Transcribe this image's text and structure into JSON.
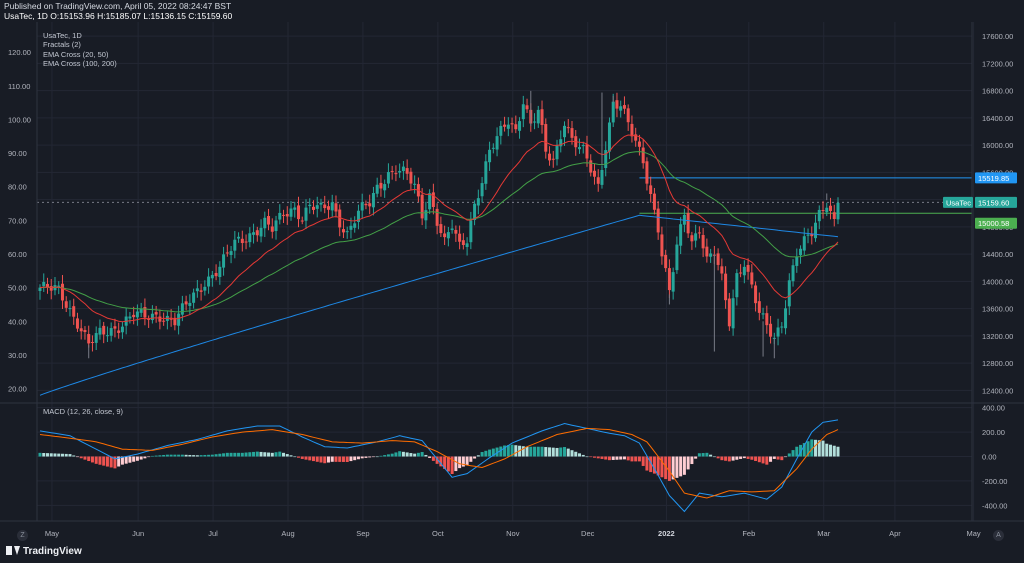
{
  "header": {
    "published": "Published on TradingView.com, April 05, 2022 08:24:47 BST",
    "ohlc": "UsaTec, 1D O:15153.96 H:15185.07 L:15136.15 C:15159.60"
  },
  "legend": {
    "symbol": "UsaTec, 1D",
    "indicators": [
      "Fractals (2)",
      "EMA Cross (20, 50)",
      "EMA Cross (100, 200)"
    ]
  },
  "macd_label": "MACD (12, 26, close, 9)",
  "footer": {
    "logo": "TradingView",
    "corner_left": "Z",
    "corner_right": "A"
  },
  "colors": {
    "background": "#181c25",
    "grid": "#232734",
    "up": "#26a69a",
    "down": "#ef5350",
    "ema_fast": "#e53935",
    "ema_slow": "#43a047",
    "ema_long": "#1e88e5",
    "macd_line": "#2196f3",
    "signal_line": "#ff6d00",
    "text": "#b2b5be"
  },
  "chart_data": {
    "type": "candlestick",
    "title": "UsaTec, 1D",
    "x_axis": {
      "tick_labels": [
        "May",
        "Jun",
        "Jul",
        "Aug",
        "Sep",
        "Oct",
        "Nov",
        "Dec",
        "2022",
        "Feb",
        "Mar",
        "Apr",
        "May"
      ]
    },
    "y_axis_left": {
      "tick_labels": [
        "20.00",
        "30.00",
        "40.00",
        "50.00",
        "60.00",
        "70.00",
        "80.00",
        "90.00",
        "100.00",
        "110.00",
        "120.00"
      ],
      "range": [
        16,
        126
      ]
    },
    "y_axis_right": {
      "tick_labels": [
        "12400.00",
        "12800.00",
        "13200.00",
        "13600.00",
        "14000.00",
        "14400.00",
        "14800.00",
        "15200.00",
        "15600.00",
        "16000.00",
        "16400.00",
        "16800.00",
        "17200.00",
        "17600.00"
      ],
      "range": [
        12230,
        17660
      ]
    },
    "price_labels": [
      {
        "text": "15519.85",
        "value": 15519.85,
        "color": "#2196f3"
      },
      {
        "text": "UsaTec",
        "value": 15159.6,
        "color": "#26a69a"
      },
      {
        "text": "15159.60",
        "value": 15159.6,
        "color": "#26a69a"
      },
      {
        "text": "15000.58",
        "value": 15000.58,
        "color": "#4caf50"
      }
    ],
    "horizontal_levels": [
      {
        "value": 15519.85,
        "color": "#2196f3",
        "style": "solid"
      },
      {
        "value": 15000.58,
        "color": "#4caf50",
        "style": "solid"
      },
      {
        "value": 15159.6,
        "color": "#787b86",
        "style": "dashed"
      }
    ],
    "close_path": [
      [
        0,
        50
      ],
      [
        5,
        49
      ],
      [
        10,
        40
      ],
      [
        13,
        33
      ],
      [
        16,
        36
      ],
      [
        20,
        38
      ],
      [
        25,
        42
      ],
      [
        28,
        41
      ],
      [
        32,
        42
      ],
      [
        36,
        40
      ],
      [
        40,
        46
      ],
      [
        44,
        52
      ],
      [
        48,
        56
      ],
      [
        52,
        63
      ],
      [
        56,
        66
      ],
      [
        60,
        69
      ],
      [
        62,
        67
      ],
      [
        65,
        72
      ],
      [
        68,
        74
      ],
      [
        70,
        71
      ],
      [
        72,
        74
      ],
      [
        75,
        73
      ],
      [
        78,
        75
      ],
      [
        80,
        70
      ],
      [
        82,
        66
      ],
      [
        85,
        72
      ],
      [
        88,
        75
      ],
      [
        90,
        80
      ],
      [
        93,
        84
      ],
      [
        95,
        85
      ],
      [
        98,
        83
      ],
      [
        100,
        80
      ],
      [
        102,
        72
      ],
      [
        104,
        78
      ],
      [
        106,
        70
      ],
      [
        108,
        63
      ],
      [
        110,
        68
      ],
      [
        112,
        62
      ],
      [
        114,
        65
      ],
      [
        116,
        75
      ],
      [
        118,
        82
      ],
      [
        120,
        90
      ],
      [
        123,
        96
      ],
      [
        125,
        100
      ],
      [
        127,
        97
      ],
      [
        129,
        106
      ],
      [
        131,
        98
      ],
      [
        133,
        102
      ],
      [
        135,
        90
      ],
      [
        137,
        88
      ],
      [
        140,
        100
      ],
      [
        142,
        94
      ],
      [
        145,
        90
      ],
      [
        147,
        85
      ],
      [
        149,
        80
      ],
      [
        151,
        93
      ],
      [
        153,
        105
      ],
      [
        155,
        104
      ],
      [
        157,
        98
      ],
      [
        159,
        93
      ],
      [
        161,
        88
      ],
      [
        163,
        78
      ],
      [
        165,
        68
      ],
      [
        166,
        60
      ],
      [
        168,
        48
      ],
      [
        170,
        62
      ],
      [
        172,
        72
      ],
      [
        174,
        64
      ],
      [
        176,
        68
      ],
      [
        178,
        58
      ],
      [
        180,
        60
      ],
      [
        182,
        52
      ],
      [
        184,
        40
      ],
      [
        186,
        54
      ],
      [
        188,
        58
      ],
      [
        190,
        50
      ],
      [
        192,
        42
      ],
      [
        194,
        38
      ],
      [
        196,
        35
      ],
      [
        198,
        40
      ],
      [
        200,
        52
      ],
      [
        202,
        60
      ],
      [
        204,
        63
      ],
      [
        206,
        66
      ],
      [
        208,
        72
      ],
      [
        210,
        76
      ],
      [
        212,
        70
      ],
      [
        213,
        75
      ]
    ],
    "highs": [
      {
        "bar": 131,
        "value": 108.5
      },
      {
        "bar": 150,
        "value": 108
      },
      {
        "bar": 153,
        "value": 107
      },
      {
        "bar": 210,
        "value": 78
      }
    ],
    "lows": [
      {
        "bar": 13,
        "value": 29
      },
      {
        "bar": 168,
        "value": 45
      },
      {
        "bar": 180,
        "value": 31
      },
      {
        "bar": 193,
        "value": 29.5
      },
      {
        "bar": 196,
        "value": 29
      }
    ],
    "macd": {
      "y_axis_labels": [
        "400.00",
        "200.00",
        "0.00",
        "-200.00",
        "-400.00"
      ],
      "range": [
        -520,
        430
      ],
      "macd_line": [
        [
          0,
          210
        ],
        [
          8,
          170
        ],
        [
          15,
          60
        ],
        [
          20,
          -20
        ],
        [
          26,
          20
        ],
        [
          34,
          90
        ],
        [
          42,
          140
        ],
        [
          50,
          210
        ],
        [
          58,
          250
        ],
        [
          64,
          250
        ],
        [
          70,
          160
        ],
        [
          76,
          80
        ],
        [
          82,
          70
        ],
        [
          90,
          120
        ],
        [
          96,
          170
        ],
        [
          102,
          130
        ],
        [
          106,
          -20
        ],
        [
          110,
          -170
        ],
        [
          114,
          -140
        ],
        [
          120,
          -10
        ],
        [
          126,
          110
        ],
        [
          134,
          210
        ],
        [
          140,
          270
        ],
        [
          146,
          230
        ],
        [
          152,
          190
        ],
        [
          156,
          170
        ],
        [
          160,
          110
        ],
        [
          164,
          -100
        ],
        [
          168,
          -320
        ],
        [
          172,
          -450
        ],
        [
          176,
          -300
        ],
        [
          182,
          -330
        ],
        [
          188,
          -300
        ],
        [
          194,
          -350
        ],
        [
          198,
          -250
        ],
        [
          202,
          -20
        ],
        [
          206,
          200
        ],
        [
          209,
          280
        ],
        [
          213,
          300
        ]
      ],
      "signal_line": [
        [
          0,
          180
        ],
        [
          8,
          150
        ],
        [
          15,
          120
        ],
        [
          22,
          60
        ],
        [
          30,
          50
        ],
        [
          38,
          100
        ],
        [
          46,
          160
        ],
        [
          54,
          200
        ],
        [
          62,
          220
        ],
        [
          70,
          180
        ],
        [
          78,
          120
        ],
        [
          86,
          110
        ],
        [
          94,
          130
        ],
        [
          100,
          120
        ],
        [
          106,
          40
        ],
        [
          112,
          -60
        ],
        [
          118,
          -90
        ],
        [
          124,
          -20
        ],
        [
          130,
          80
        ],
        [
          138,
          180
        ],
        [
          146,
          230
        ],
        [
          152,
          220
        ],
        [
          158,
          180
        ],
        [
          162,
          120
        ],
        [
          168,
          -120
        ],
        [
          172,
          -300
        ],
        [
          178,
          -340
        ],
        [
          184,
          -280
        ],
        [
          190,
          -290
        ],
        [
          196,
          -280
        ],
        [
          202,
          -100
        ],
        [
          206,
          60
        ],
        [
          210,
          180
        ],
        [
          213,
          220
        ]
      ]
    }
  }
}
